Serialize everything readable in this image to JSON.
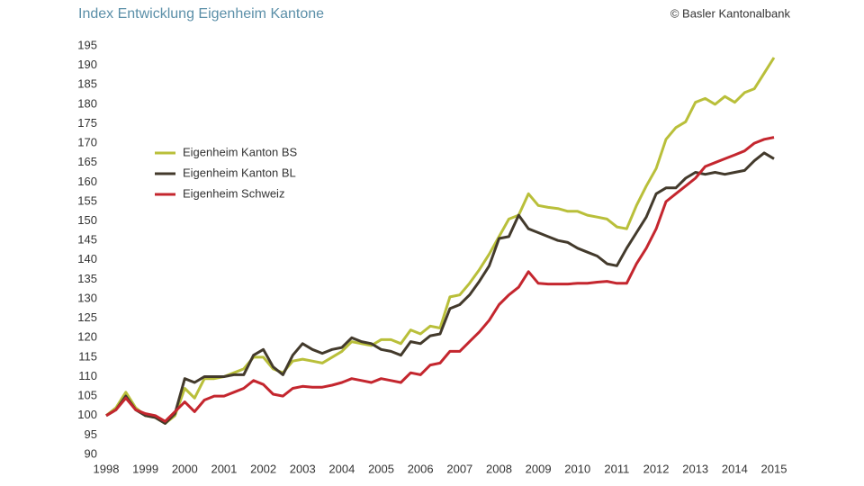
{
  "chart_data": {
    "type": "line",
    "title": "Index Entwicklung Eigenheim Kantone",
    "source": "© Basler Kantonalbank",
    "x": [
      1998,
      1998.25,
      1998.5,
      1998.75,
      1999,
      1999.25,
      1999.5,
      1999.75,
      2000,
      2000.25,
      2000.5,
      2000.75,
      2001,
      2001.25,
      2001.5,
      2001.75,
      2002,
      2002.25,
      2002.5,
      2002.75,
      2003,
      2003.25,
      2003.5,
      2003.75,
      2004,
      2004.25,
      2004.5,
      2004.75,
      2005,
      2005.25,
      2005.5,
      2005.75,
      2006,
      2006.25,
      2006.5,
      2006.75,
      2007,
      2007.25,
      2007.5,
      2007.75,
      2008,
      2008.25,
      2008.5,
      2008.75,
      2009,
      2009.25,
      2009.5,
      2009.75,
      2010,
      2010.25,
      2010.5,
      2010.75,
      2011,
      2011.25,
      2011.5,
      2011.75,
      2012,
      2012.25,
      2012.5,
      2012.75,
      2013,
      2013.25,
      2013.5,
      2013.75,
      2014,
      2014.25,
      2014.5,
      2014.75,
      2015
    ],
    "series": [
      {
        "name": "Eigenheim Kanton BS",
        "color": "#b9bf3a",
        "values": [
          100,
          102,
          106,
          102,
          100,
          99.5,
          98,
          100,
          107,
          104.5,
          109.5,
          109.5,
          110,
          111,
          112,
          115,
          115,
          112,
          111,
          114,
          114.5,
          114,
          113.5,
          115,
          116.5,
          119,
          118.5,
          118,
          119.5,
          119.5,
          118.5,
          122,
          121,
          123,
          122.5,
          130.5,
          131,
          134,
          137.5,
          141.5,
          146,
          150.5,
          151.5,
          157,
          154,
          153.5,
          153.2,
          152.5,
          152.5,
          151.5,
          151,
          150.5,
          148.5,
          148,
          154,
          159,
          163.5,
          171,
          174,
          175.5,
          180.5,
          181.5,
          180,
          182,
          180.5,
          183,
          184,
          188,
          192
        ]
      },
      {
        "name": "Eigenheim Kanton BL",
        "color": "#433a2c",
        "values": [
          100,
          101.5,
          105,
          101.5,
          100,
          99.5,
          98,
          100.5,
          109.5,
          108.5,
          110,
          110,
          110,
          110.5,
          110.5,
          115.5,
          117,
          112.5,
          110.5,
          115.5,
          118.5,
          117,
          116,
          117,
          117.5,
          120,
          119,
          118.5,
          117,
          116.5,
          115.5,
          119,
          118.5,
          120.5,
          121,
          127.5,
          128.5,
          131,
          134.5,
          138.5,
          145.5,
          146,
          151.5,
          148,
          147,
          146,
          145,
          144.5,
          143,
          142,
          141,
          139,
          138.5,
          143,
          147,
          151,
          157,
          158.5,
          158.5,
          161,
          162.5,
          162,
          162.5,
          162,
          162.5,
          163,
          165.5,
          167.5,
          166
        ]
      },
      {
        "name": "Eigenheim Schweiz",
        "color": "#c4262e",
        "values": [
          100,
          101.5,
          104.5,
          101.5,
          100.5,
          100,
          98.5,
          101,
          103.5,
          101,
          104,
          105,
          105,
          106,
          107,
          109,
          108,
          105.5,
          105,
          107,
          107.5,
          107.3,
          107.3,
          107.8,
          108.5,
          109.5,
          109,
          108.5,
          109.5,
          109,
          108.5,
          111,
          110.5,
          113,
          113.5,
          116.5,
          116.5,
          119,
          121.5,
          124.5,
          128.5,
          131,
          133,
          137,
          134,
          133.8,
          133.8,
          133.8,
          134,
          134,
          134.3,
          134.5,
          134,
          134,
          139,
          143,
          148,
          155,
          157,
          159,
          161,
          164,
          165,
          166,
          167,
          168,
          170,
          171,
          171.5
        ]
      }
    ],
    "xlim": [
      1998,
      2015
    ],
    "xticks": [
      1998,
      1999,
      2000,
      2001,
      2002,
      2003,
      2004,
      2005,
      2006,
      2007,
      2008,
      2009,
      2010,
      2011,
      2012,
      2013,
      2014,
      2015
    ],
    "ylim": [
      90,
      195
    ],
    "yticks": [
      90,
      95,
      100,
      105,
      110,
      115,
      120,
      125,
      130,
      135,
      140,
      145,
      150,
      155,
      160,
      165,
      170,
      175,
      180,
      185,
      190,
      195
    ]
  }
}
